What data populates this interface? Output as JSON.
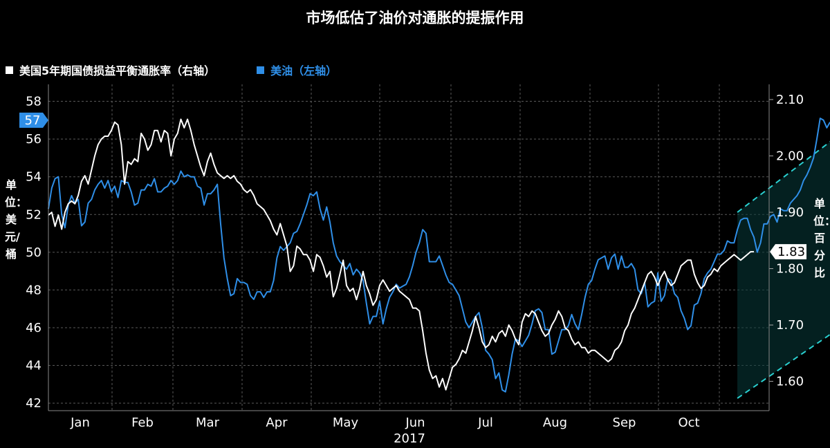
{
  "title": "市场低估了油价对通胀的提振作用",
  "legend": {
    "items": [
      {
        "label": "美国5年期国债损益平衡通胀率（右轴）",
        "color": "#ffffff"
      },
      {
        "label": "美油（左轴）",
        "color": "#2f8fe8"
      }
    ]
  },
  "axes": {
    "left_label": "单位：美元/桶",
    "right_label": "单位：百分比"
  },
  "chart_data": {
    "type": "line",
    "title": "市场低估了油价对通胀的提振作用",
    "x_ticks": [
      "Jan",
      "Feb",
      "Mar",
      "Apr",
      "May",
      "Jun",
      "Jul",
      "Aug",
      "Sep",
      "Oct"
    ],
    "x_year_label": "2017",
    "y_left": {
      "label": "单位：美元/桶",
      "ticks": [
        42,
        44,
        46,
        48,
        50,
        52,
        54,
        56,
        58
      ],
      "range": [
        41.6,
        58.9
      ]
    },
    "y_right": {
      "label": "单位：百分比",
      "ticks": [
        "1.60",
        "1.70",
        "1.80",
        "1.90",
        "2.00",
        "2.10"
      ],
      "range": [
        1.548,
        2.127
      ]
    },
    "last_value_labels": {
      "left": "57",
      "right": "1.83"
    },
    "series": [
      {
        "name": "美国5年期国债损益平衡通胀率（右轴）",
        "axis": "right",
        "color": "#ffffff",
        "values": [
          1.895,
          1.9,
          1.875,
          1.895,
          1.87,
          1.9,
          1.915,
          1.92,
          1.915,
          1.93,
          1.955,
          1.965,
          1.95,
          1.975,
          2.0,
          2.02,
          2.03,
          2.035,
          2.035,
          2.045,
          2.06,
          2.055,
          2.02,
          1.95,
          1.99,
          1.985,
          1.995,
          1.99,
          2.04,
          2.03,
          2.01,
          2.02,
          2.045,
          2.045,
          2.025,
          2.045,
          2.04,
          2.0,
          2.03,
          2.04,
          2.065,
          2.05,
          2.065,
          2.045,
          2.02,
          2.0,
          1.98,
          1.965,
          1.99,
          2.005,
          1.985,
          1.97,
          1.965,
          1.96,
          1.965,
          1.96,
          1.965,
          1.955,
          1.95,
          1.94,
          1.935,
          1.94,
          1.93,
          1.915,
          1.91,
          1.905,
          1.895,
          1.885,
          1.87,
          1.86,
          1.88,
          1.86,
          1.84,
          1.795,
          1.805,
          1.84,
          1.835,
          1.825,
          1.825,
          1.815,
          1.795,
          1.825,
          1.82,
          1.805,
          1.785,
          1.795,
          1.75,
          1.765,
          1.79,
          1.815,
          1.77,
          1.76,
          1.765,
          1.745,
          1.765,
          1.795,
          1.77,
          1.755,
          1.735,
          1.745,
          1.77,
          1.78,
          1.77,
          1.76,
          1.765,
          1.77,
          1.76,
          1.755,
          1.75,
          1.745,
          1.73,
          1.73,
          1.725,
          1.69,
          1.65,
          1.62,
          1.605,
          1.61,
          1.59,
          1.605,
          1.585,
          1.605,
          1.625,
          1.63,
          1.64,
          1.655,
          1.65,
          1.67,
          1.69,
          1.715,
          1.695,
          1.67,
          1.66,
          1.665,
          1.68,
          1.67,
          1.685,
          1.69,
          1.68,
          1.7,
          1.69,
          1.675,
          1.665,
          1.705,
          1.72,
          1.715,
          1.725,
          1.72,
          1.705,
          1.69,
          1.68,
          1.685,
          1.7,
          1.71,
          1.725,
          1.715,
          1.695,
          1.69,
          1.675,
          1.665,
          1.67,
          1.66,
          1.66,
          1.65,
          1.655,
          1.655,
          1.65,
          1.645,
          1.64,
          1.635,
          1.64,
          1.655,
          1.66,
          1.67,
          1.69,
          1.7,
          1.72,
          1.73,
          1.745,
          1.76,
          1.775,
          1.79,
          1.795,
          1.785,
          1.77,
          1.785,
          1.795,
          1.78,
          1.77,
          1.775,
          1.79,
          1.805,
          1.81,
          1.815,
          1.815,
          1.79,
          1.775,
          1.765,
          1.77,
          1.785,
          1.79,
          1.8,
          1.795,
          1.805,
          1.81,
          1.815,
          1.82,
          1.825,
          1.82,
          1.815,
          1.82,
          1.825,
          1.83,
          1.83
        ]
      },
      {
        "name": "美油（左轴）",
        "axis": "left",
        "color": "#2f8fe8",
        "values": [
          52.3,
          53.4,
          53.9,
          54.0,
          52.0,
          51.3,
          52.5,
          53.0,
          52.6,
          52.8,
          51.4,
          51.6,
          52.6,
          52.8,
          53.3,
          53.6,
          53.8,
          53.4,
          53.8,
          53.2,
          53.5,
          52.9,
          53.8,
          53.7,
          53.7,
          53.2,
          52.5,
          52.6,
          53.3,
          53.3,
          53.6,
          53.5,
          53.9,
          53.2,
          53.2,
          53.4,
          53.5,
          53.8,
          53.6,
          53.8,
          54.3,
          54.0,
          54.1,
          54.0,
          54.0,
          53.5,
          53.4,
          52.5,
          53.1,
          53.1,
          53.3,
          53.6,
          51.5,
          49.7,
          48.6,
          47.7,
          47.8,
          48.6,
          48.4,
          48.4,
          48.3,
          47.7,
          47.5,
          47.9,
          47.9,
          47.6,
          47.9,
          47.9,
          48.5,
          49.7,
          50.3,
          50.1,
          50.3,
          50.5,
          51.0,
          51.1,
          51.5,
          52.0,
          52.5,
          53.1,
          53.0,
          53.2,
          52.3,
          51.7,
          52.4,
          51.6,
          50.5,
          49.8,
          49.5,
          49.3,
          49.1,
          49.4,
          48.8,
          49.1,
          48.9,
          48.5,
          47.3,
          46.2,
          46.6,
          46.6,
          47.4,
          46.2,
          47.0,
          47.6,
          47.9,
          48.3,
          48.1,
          48.2,
          48.3,
          48.7,
          49.3,
          50.0,
          50.5,
          51.2,
          51.0,
          49.5,
          49.5,
          49.5,
          49.8,
          49.3,
          48.8,
          48.4,
          48.3,
          48.0,
          47.7,
          47.0,
          46.3,
          46.0,
          46.3,
          46.6,
          46.8,
          46.0,
          44.8,
          44.6,
          44.3,
          43.3,
          43.6,
          42.7,
          42.6,
          43.5,
          44.6,
          45.4,
          45.3,
          45.0,
          45.3,
          45.6,
          46.2,
          46.9,
          47.0,
          46.8,
          45.9,
          45.9,
          44.6,
          44.7,
          45.3,
          45.9,
          45.9,
          46.1,
          46.7,
          46.2,
          45.9,
          46.7,
          47.6,
          48.3,
          48.5,
          49.1,
          49.6,
          49.7,
          49.8,
          49.1,
          49.7,
          49.9,
          49.1,
          49.8,
          49.2,
          49.2,
          49.4,
          49.1,
          48.0,
          47.8,
          48.4,
          47.1,
          47.3,
          47.4,
          48.9,
          47.4,
          47.7,
          48.6,
          48.5,
          47.8,
          47.6,
          46.9,
          46.5,
          45.9,
          46.1,
          47.2,
          47.3,
          47.8,
          48.6,
          48.9,
          49.1,
          49.5,
          49.9,
          49.9,
          50.1,
          50.6,
          50.5,
          50.5,
          51.2,
          51.7,
          51.8,
          51.8,
          51.2,
          50.8,
          50.0,
          50.5,
          51.5,
          51.5,
          51.9,
          52.0,
          51.6,
          52.3,
          52.2,
          52.2,
          52.6,
          52.8,
          53.0,
          53.3,
          53.8,
          54.1,
          54.5,
          55.0,
          56.0,
          57.1,
          57.0,
          56.6,
          56.9
        ]
      }
    ],
    "annotation": {
      "type": "parallel-channel",
      "axis": "right",
      "upper": {
        "start": [
          208,
          1.9
        ],
        "end": [
          255,
          2.11
        ]
      },
      "lower": {
        "start": [
          208,
          1.57
        ],
        "end": [
          255,
          1.76
        ]
      }
    }
  }
}
